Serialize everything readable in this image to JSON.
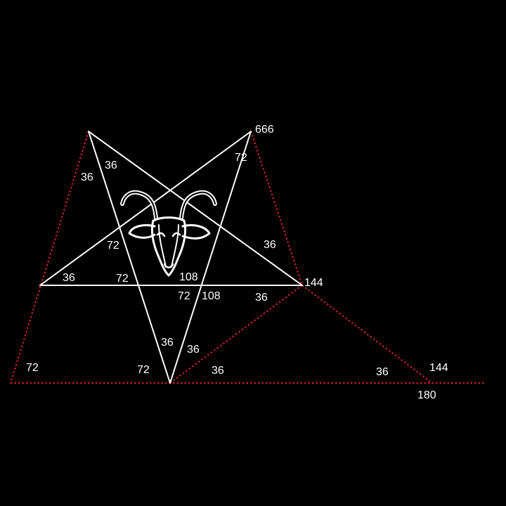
{
  "colors": {
    "background": "#000000",
    "pentagram_lines": "#ffffff",
    "dotted_lines": "#c8202a"
  },
  "emblem": {
    "icon": "goat-head-icon"
  },
  "labels": {
    "vertex_top_right": "666",
    "angle_top_left_outer": "36",
    "angle_top_left_inner": "36",
    "angle_top_right_inner": "72",
    "angle_right_upper": "36",
    "vertex_right": "144",
    "angle_left_point": "36",
    "angle_left_inner_a": "72",
    "angle_left_inner_b": "72",
    "angle_center_top": "108",
    "angle_center_bottom_left": "72",
    "angle_center_bottom_right": "108",
    "angle_right_lower": "36",
    "angle_bottom_left": "36",
    "angle_bottom_right": "36",
    "angle_far_left": "72",
    "angle_bottom_vertex_left": "72",
    "angle_base_middle": "36",
    "angle_base_right": "36",
    "vertex_far_right": "144",
    "vertex_base": "180"
  }
}
